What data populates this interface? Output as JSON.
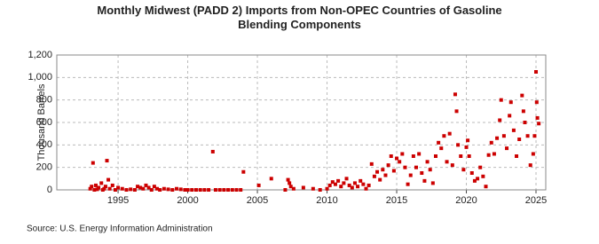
{
  "chart_data": {
    "type": "scatter",
    "title": "Monthly Midwest (PADD 2) Imports from Non-OPEC Countries of Gasoline Blending Components",
    "y_label": "Thousand Barrels",
    "source": "Source: U.S. Energy Information Administration",
    "color": "#cc0000",
    "grid": true,
    "xlim": [
      1990.6,
      2025.7
    ],
    "xticks": [
      1995,
      2000,
      2005,
      2010,
      2015,
      2020,
      2025
    ],
    "ylim": [
      0,
      1200
    ],
    "yticks": [
      0,
      200,
      400,
      600,
      800,
      {
        "value": 1000,
        "label": "1,000"
      },
      {
        "value": 1200,
        "label": "1,200"
      }
    ],
    "x": [
      1993.0,
      1993.1,
      1993.2,
      1993.3,
      1993.4,
      1993.5,
      1993.6,
      1993.8,
      1993.9,
      1994.0,
      1994.1,
      1994.2,
      1994.3,
      1994.4,
      1994.6,
      1994.8,
      1995.0,
      1995.3,
      1995.6,
      1995.9,
      1996.2,
      1996.4,
      1996.6,
      1996.8,
      1997.0,
      1997.2,
      1997.4,
      1997.6,
      1997.8,
      1998.0,
      1998.3,
      1998.6,
      1998.9,
      1999.2,
      1999.5,
      1999.8,
      2000.0,
      2000.3,
      2000.6,
      2000.9,
      2001.2,
      2001.5,
      2001.8,
      2002.0,
      2002.3,
      2002.6,
      2002.9,
      2003.2,
      2003.5,
      2003.8,
      2004.0,
      2005.1,
      2006.0,
      2007.0,
      2007.2,
      2007.3,
      2007.4,
      2007.6,
      2008.3,
      2009.0,
      2009.5,
      2010.0,
      2010.2,
      2010.4,
      2010.6,
      2010.8,
      2011.0,
      2011.2,
      2011.4,
      2011.6,
      2011.8,
      2012.0,
      2012.2,
      2012.4,
      2012.6,
      2012.8,
      2013.0,
      2013.2,
      2013.4,
      2013.6,
      2013.8,
      2014.0,
      2014.2,
      2014.4,
      2014.6,
      2014.8,
      2015.0,
      2015.2,
      2015.4,
      2015.6,
      2015.8,
      2016.0,
      2016.2,
      2016.4,
      2016.6,
      2016.8,
      2017.0,
      2017.2,
      2017.4,
      2017.6,
      2017.8,
      2018.0,
      2018.2,
      2018.4,
      2018.6,
      2018.8,
      2019.0,
      2019.2,
      2019.3,
      2019.4,
      2019.6,
      2019.8,
      2020.0,
      2020.1,
      2020.2,
      2020.4,
      2020.6,
      2020.8,
      2021.0,
      2021.2,
      2021.4,
      2021.6,
      2021.8,
      2022.0,
      2022.2,
      2022.4,
      2022.5,
      2022.7,
      2022.9,
      2023.1,
      2023.2,
      2023.4,
      2023.6,
      2023.8,
      2024.0,
      2024.1,
      2024.2,
      2024.4,
      2024.6,
      2024.8,
      2024.9,
      2025.0,
      2025.05,
      2025.1,
      2025.2
    ],
    "values": [
      10,
      30,
      240,
      0,
      40,
      5,
      20,
      60,
      0,
      10,
      30,
      260,
      90,
      10,
      40,
      0,
      20,
      10,
      0,
      5,
      0,
      30,
      20,
      10,
      40,
      20,
      0,
      30,
      10,
      0,
      10,
      5,
      0,
      10,
      5,
      0,
      0,
      0,
      0,
      0,
      0,
      0,
      340,
      0,
      0,
      0,
      0,
      0,
      0,
      0,
      160,
      40,
      100,
      0,
      90,
      60,
      30,
      10,
      20,
      10,
      0,
      10,
      40,
      70,
      50,
      80,
      30,
      60,
      100,
      40,
      20,
      60,
      30,
      80,
      50,
      10,
      40,
      230,
      120,
      160,
      90,
      180,
      130,
      220,
      300,
      170,
      280,
      250,
      320,
      200,
      50,
      130,
      300,
      200,
      320,
      150,
      80,
      250,
      180,
      60,
      300,
      420,
      370,
      480,
      250,
      500,
      220,
      850,
      700,
      400,
      300,
      180,
      380,
      440,
      300,
      150,
      80,
      100,
      200,
      120,
      30,
      310,
      420,
      320,
      460,
      620,
      800,
      480,
      370,
      660,
      780,
      530,
      300,
      450,
      840,
      700,
      600,
      480,
      220,
      320,
      480,
      1050,
      780,
      640,
      590
    ]
  }
}
